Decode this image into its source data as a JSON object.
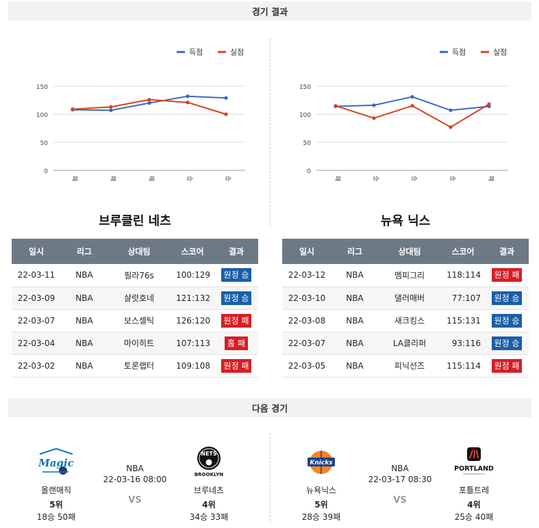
{
  "headers": {
    "results": "경기 결과",
    "next_game": "다음 경기"
  },
  "legend": {
    "scored": "득점",
    "conceded": "실점"
  },
  "colors": {
    "scored": "#3a67c9",
    "conceded": "#d8401c",
    "win": "#1a5fa8",
    "lose": "#d61f26",
    "table_header": "#6d7a86"
  },
  "table_columns": [
    "일시",
    "리그",
    "상대팀",
    "스코어",
    "결과"
  ],
  "chart_data": [
    {
      "type": "line",
      "categories": [
        "패",
        "패",
        "패",
        "승",
        "승"
      ],
      "ylim": [
        0,
        150
      ],
      "yticks": [
        0,
        50,
        100,
        150
      ],
      "legend_position": "top-right",
      "grid": true,
      "series": [
        {
          "name": "득점",
          "values": [
            108,
            107,
            120,
            132,
            129
          ]
        },
        {
          "name": "실점",
          "values": [
            109,
            113,
            126,
            121,
            100
          ]
        }
      ]
    },
    {
      "type": "line",
      "categories": [
        "패",
        "승",
        "승",
        "승",
        "패"
      ],
      "ylim": [
        0,
        150
      ],
      "yticks": [
        0,
        50,
        100,
        150
      ],
      "legend_position": "top-right",
      "grid": true,
      "series": [
        {
          "name": "득점",
          "values": [
            114,
            116,
            131,
            107,
            114
          ]
        },
        {
          "name": "실점",
          "values": [
            115,
            93,
            115,
            77,
            118
          ]
        }
      ]
    }
  ],
  "left_team": {
    "title": "브루클린 네츠",
    "games": [
      {
        "date": "22-03-11",
        "league": "NBA",
        "opponent": "필라76s",
        "score": "100:129",
        "result": "원정 승",
        "win": true
      },
      {
        "date": "22-03-09",
        "league": "NBA",
        "opponent": "샬럿호네",
        "score": "121:132",
        "result": "원정 승",
        "win": true
      },
      {
        "date": "22-03-07",
        "league": "NBA",
        "opponent": "보스셀틱",
        "score": "126:120",
        "result": "원정 패",
        "win": false
      },
      {
        "date": "22-03-04",
        "league": "NBA",
        "opponent": "마이히트",
        "score": "107:113",
        "result": "홈 패",
        "win": false
      },
      {
        "date": "22-03-02",
        "league": "NBA",
        "opponent": "토론랩터",
        "score": "109:108",
        "result": "원정 패",
        "win": false
      }
    ]
  },
  "right_team": {
    "title": "뉴욕 닉스",
    "games": [
      {
        "date": "22-03-12",
        "league": "NBA",
        "opponent": "멤피그리",
        "score": "118:114",
        "result": "원정 패",
        "win": false
      },
      {
        "date": "22-03-10",
        "league": "NBA",
        "opponent": "댈러매버",
        "score": "77:107",
        "result": "원정 승",
        "win": true
      },
      {
        "date": "22-03-08",
        "league": "NBA",
        "opponent": "새크킹스",
        "score": "115:131",
        "result": "원정 승",
        "win": true
      },
      {
        "date": "22-03-07",
        "league": "NBA",
        "opponent": "LA클리퍼",
        "score": "93:116",
        "result": "원정 승",
        "win": true
      },
      {
        "date": "22-03-05",
        "league": "NBA",
        "opponent": "피닉선즈",
        "score": "115:114",
        "result": "원정 패",
        "win": false
      }
    ]
  },
  "next_games": [
    {
      "league": "NBA",
      "datetime": "22-03-16 08:00",
      "vs": "VS",
      "home": {
        "name": "올랜매직",
        "rank": "5위",
        "record": "18승 50패",
        "logo_text": "Magic"
      },
      "away": {
        "name": "브루네츠",
        "rank": "4위",
        "record": "34승 33패",
        "logo_text": "NETS",
        "logo_subtext": "BROOKLYN"
      }
    },
    {
      "league": "NBA",
      "datetime": "22-03-17 08:30",
      "vs": "VS",
      "home": {
        "name": "뉴욕닉스",
        "rank": "5위",
        "record": "28승 39패",
        "logo_text": "Knicks"
      },
      "away": {
        "name": "포틀트레",
        "rank": "4위",
        "record": "25승 40패",
        "logo_text": "PORTLAND"
      }
    }
  ]
}
